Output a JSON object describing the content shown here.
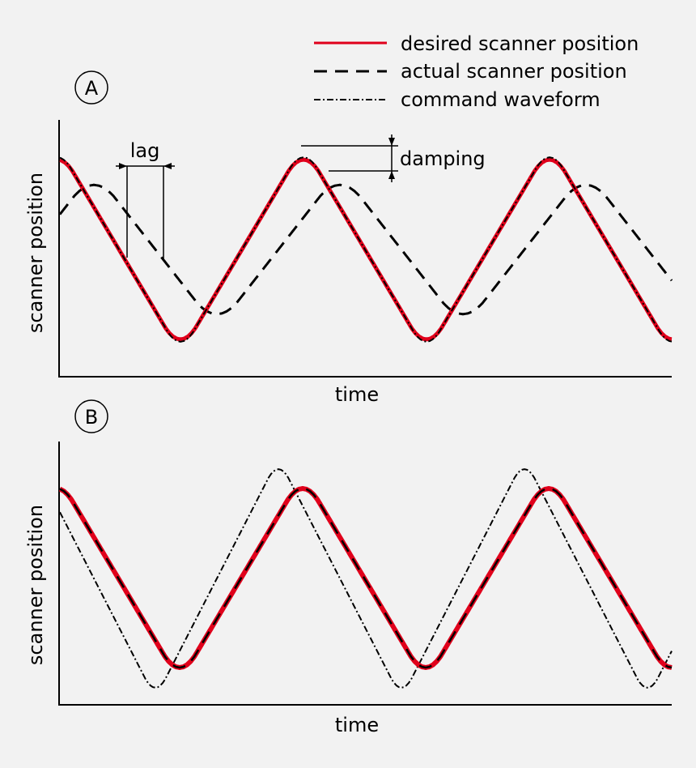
{
  "legend": {
    "items": [
      {
        "label": "desired scanner position",
        "style": "solid",
        "color": "#e0001b"
      },
      {
        "label": "actual scanner position",
        "style": "dashed",
        "color": "#000000"
      },
      {
        "label": "command waveform",
        "style": "dash-dot",
        "color": "#000000"
      }
    ]
  },
  "panels": [
    {
      "id": "A",
      "badge": "A",
      "xlabel": "time",
      "ylabel": "scanner position",
      "annotations": {
        "lag": "lag",
        "damping": "damping"
      }
    },
    {
      "id": "B",
      "badge": "B",
      "xlabel": "time",
      "ylabel": "scanner position"
    }
  ],
  "colors": {
    "desired": "#e0001b",
    "actual": "#000000",
    "command": "#000000",
    "background": "#f2f2f2"
  }
}
